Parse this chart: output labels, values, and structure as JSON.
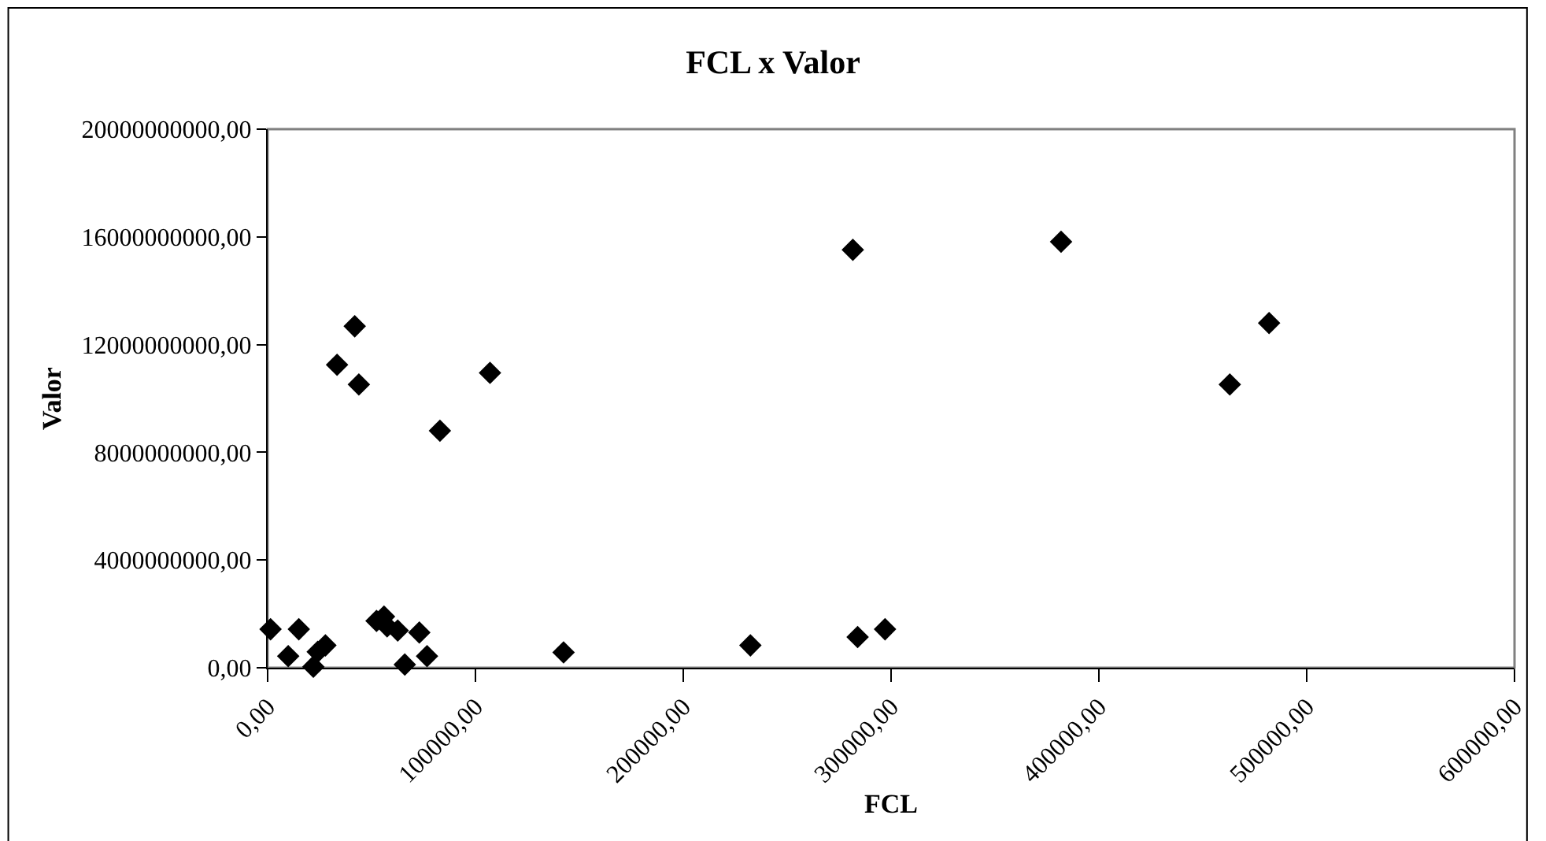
{
  "chart_data": {
    "type": "scatter",
    "title": "FCL x Valor",
    "xlabel": "FCL",
    "ylabel": "Valor",
    "marker": "diamond",
    "xlim": [
      0,
      600000
    ],
    "ylim": [
      0,
      20000000000
    ],
    "xticks": [
      {
        "value": 0,
        "label": "0,00"
      },
      {
        "value": 100000,
        "label": "100000,00"
      },
      {
        "value": 200000,
        "label": "200000,00"
      },
      {
        "value": 300000,
        "label": "300000,00"
      },
      {
        "value": 400000,
        "label": "400000,00"
      },
      {
        "value": 500000,
        "label": "500000,00"
      },
      {
        "value": 600000,
        "label": "600000,00"
      }
    ],
    "yticks": [
      {
        "value": 0,
        "label": "0,00"
      },
      {
        "value": 4000000000,
        "label": "4000000000,00"
      },
      {
        "value": 8000000000,
        "label": "8000000000,00"
      },
      {
        "value": 12000000000,
        "label": "12000000000,00"
      },
      {
        "value": 16000000000,
        "label": "16000000000,00"
      },
      {
        "value": 20000000000,
        "label": "20000000000,00"
      }
    ],
    "series": [
      {
        "color": "#000000",
        "x": [
          1400,
          9900,
          15000,
          22000,
          24100,
          27800,
          33400,
          41900,
          43900,
          52400,
          56000,
          57500,
          62600,
          66000,
          73000,
          76700,
          82900,
          107000,
          142400,
          232300,
          281600,
          283900,
          297100,
          381800,
          463000,
          481900
        ],
        "values": [
          1430000000,
          430000000,
          1430000000,
          40000000,
          590000000,
          830000000,
          11250000000,
          12680000000,
          10520000000,
          1740000000,
          1900000000,
          1540000000,
          1380000000,
          120000000,
          1310000000,
          430000000,
          8800000000,
          10950000000,
          570000000,
          830000000,
          15520000000,
          1140000000,
          1430000000,
          15820000000,
          10520000000,
          12800000000
        ]
      }
    ]
  }
}
